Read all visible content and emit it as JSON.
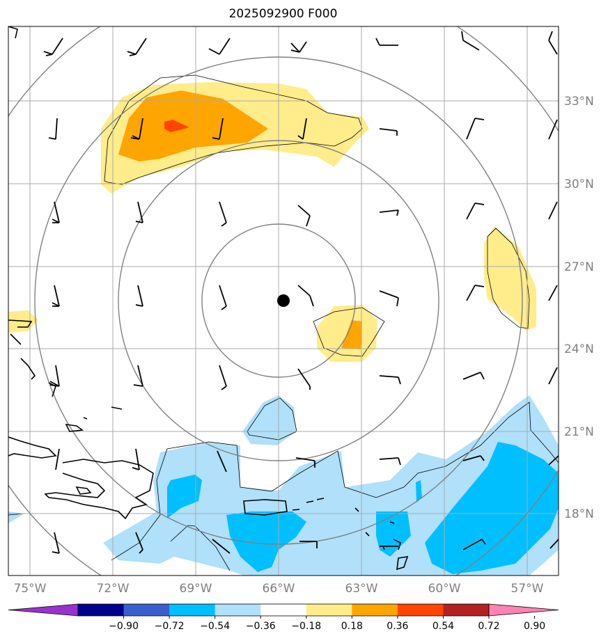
{
  "title": "2025092900 F000",
  "lon_labels": [
    "75°W",
    "72°W",
    "69°W",
    "66°W",
    "63°W",
    "60°W",
    "57°W"
  ],
  "lon_values": [
    -75,
    -72,
    -69,
    -66,
    -63,
    -60,
    -57
  ],
  "lat_labels": [
    "33°N",
    "30°N",
    "27°N",
    "24°N",
    "21°N",
    "18°N"
  ],
  "lat_values": [
    33,
    30,
    27,
    24,
    21,
    18
  ],
  "colorbar": {
    "ticks": [
      "−0.90",
      "−0.72",
      "−0.54",
      "−0.36",
      "−0.18",
      "0.18",
      "0.36",
      "0.54",
      "0.72",
      "0.90"
    ],
    "colors": [
      "#9932cc",
      "#00008b",
      "#3a5fcd",
      "#00bfff",
      "#b0e0fa",
      "#ffffff",
      "#ffec8b",
      "#ffa500",
      "#ff4500",
      "#b22222",
      "#ff83b4"
    ]
  },
  "colors": {
    "light_yellow": "#ffec8b",
    "orange": "#ffa500",
    "red_orange": "#ff4500",
    "light_blue": "#b0e0fa",
    "deep_sky_blue": "#00bfff",
    "range_rings": "#808080",
    "grid": "#aaaaaa",
    "center_marker": "#000000"
  },
  "map": {
    "lon_min": -75.8,
    "lon_max": -55.8,
    "lat_min": 15.8,
    "lat_max": 35.8,
    "center": {
      "lon": -66.0,
      "lat": 25.7
    }
  }
}
